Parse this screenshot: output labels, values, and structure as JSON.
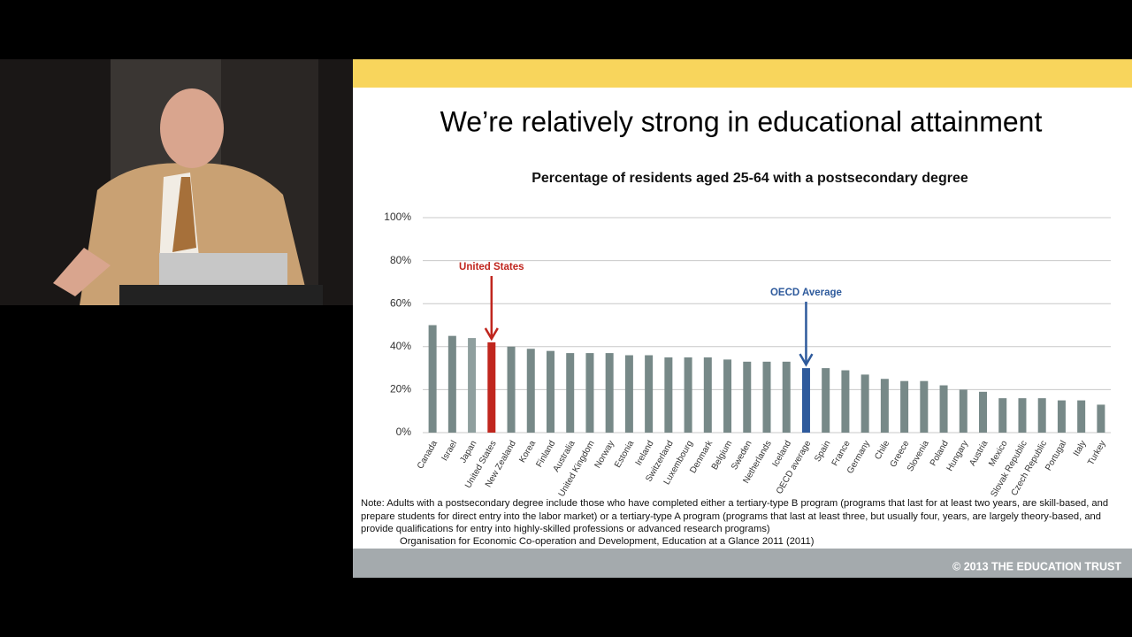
{
  "slide": {
    "title": "We’re relatively strong in educational attainment",
    "note": "Note: Adults with a postsecondary degree include those who have completed either a tertiary-type B program (programs that last for at least two years, are skill-based, and prepare students for direct entry into the labor market) or a tertiary-type A program (programs that last at least three, but usually four, years, are largely theory-based, and provide qualifications for entry into highly-skilled professions or advanced research programs)",
    "source": "Organisation for Economic Co-operation and Development, Education at a Glance 2011 (2011)",
    "footer": "© 2013 THE EDUCATION TRUST"
  },
  "chart_data": {
    "type": "bar",
    "title": "Percentage of residents aged 25-64 with a postsecondary degree",
    "categories": [
      "Canada",
      "Israel",
      "Japan",
      "United States",
      "New Zealand",
      "Korea",
      "Finland",
      "Australia",
      "United Kingdom",
      "Norway",
      "Estonia",
      "Ireland",
      "Switzerland",
      "Luxembourg",
      "Denmark",
      "Belgium",
      "Sweden",
      "Netherlands",
      "Iceland",
      "OECD average",
      "Spain",
      "France",
      "Germany",
      "Chile",
      "Greece",
      "Slovenia",
      "Poland",
      "Hungary",
      "Austria",
      "Mexico",
      "Slovak Republic",
      "Czech Republic",
      "Portugal",
      "Italy",
      "Turkey"
    ],
    "values": [
      50,
      45,
      44,
      42,
      40,
      39,
      38,
      37,
      37,
      37,
      36,
      36,
      35,
      35,
      35,
      34,
      33,
      33,
      33,
      30,
      30,
      29,
      27,
      25,
      24,
      24,
      22,
      20,
      19,
      16,
      16,
      16,
      15,
      15,
      13
    ],
    "colors": [
      "#778988",
      "#778988",
      "#8f9f9e",
      "#c0261e",
      "#778988",
      "#778988",
      "#778988",
      "#778988",
      "#778988",
      "#778988",
      "#778988",
      "#778988",
      "#778988",
      "#778988",
      "#778988",
      "#778988",
      "#778988",
      "#778988",
      "#778988",
      "#2e5a9c",
      "#778988",
      "#778988",
      "#778988",
      "#778988",
      "#778988",
      "#778988",
      "#778988",
      "#778988",
      "#778988",
      "#778988",
      "#778988",
      "#778988",
      "#778988",
      "#778988",
      "#778988"
    ],
    "ylim": [
      0,
      100
    ],
    "yticks": [
      {
        "value": 0,
        "label": "0%"
      },
      {
        "value": 20,
        "label": "20%"
      },
      {
        "value": 40,
        "label": "40%"
      },
      {
        "value": 60,
        "label": "60%"
      },
      {
        "value": 80,
        "label": "80%"
      },
      {
        "value": 100,
        "label": "100%"
      }
    ],
    "grid": true,
    "annotations": [
      {
        "text": "United States",
        "category": "United States"
      },
      {
        "text": "OECD Average",
        "category": "OECD average"
      }
    ]
  }
}
